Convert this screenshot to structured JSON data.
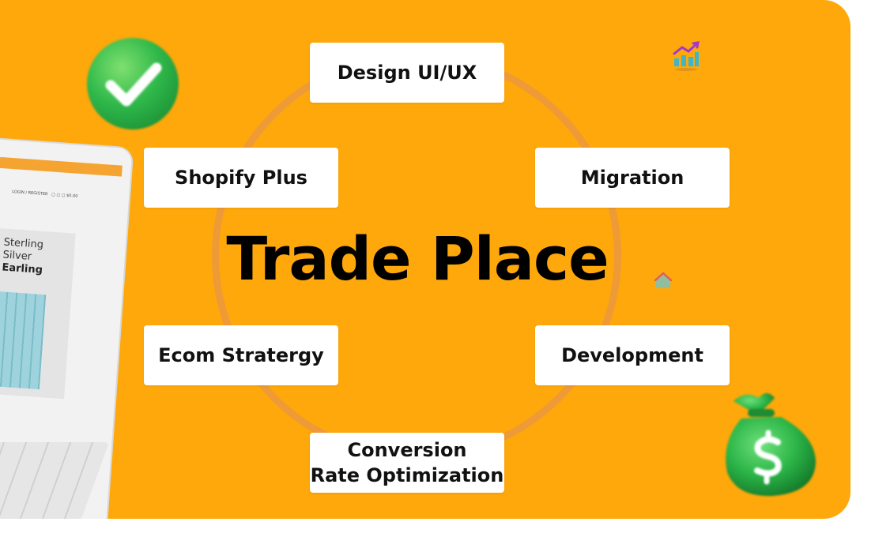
{
  "title": "Trade Place",
  "services": [
    {
      "label": "Design UI/UX"
    },
    {
      "label": "Shopify Plus"
    },
    {
      "label": "Migration"
    },
    {
      "label": "Ecom Stratergy"
    },
    {
      "label": "Development"
    },
    {
      "label_line1": "Conversion",
      "label_line2": "Rate Optimization"
    }
  ],
  "laptop": {
    "nav_text": "LOGIN / REGISTER",
    "cart_value": "$0.00",
    "product_line1": "Sterling",
    "product_line2": "Silver",
    "product_line3": "Earling"
  },
  "icons": [
    "check-icon",
    "chart-icon",
    "house-icon",
    "money-bag-icon"
  ],
  "colors": {
    "background": "#fea80b",
    "ring": "#e89646",
    "box": "#ffffff",
    "text": "#000000"
  }
}
